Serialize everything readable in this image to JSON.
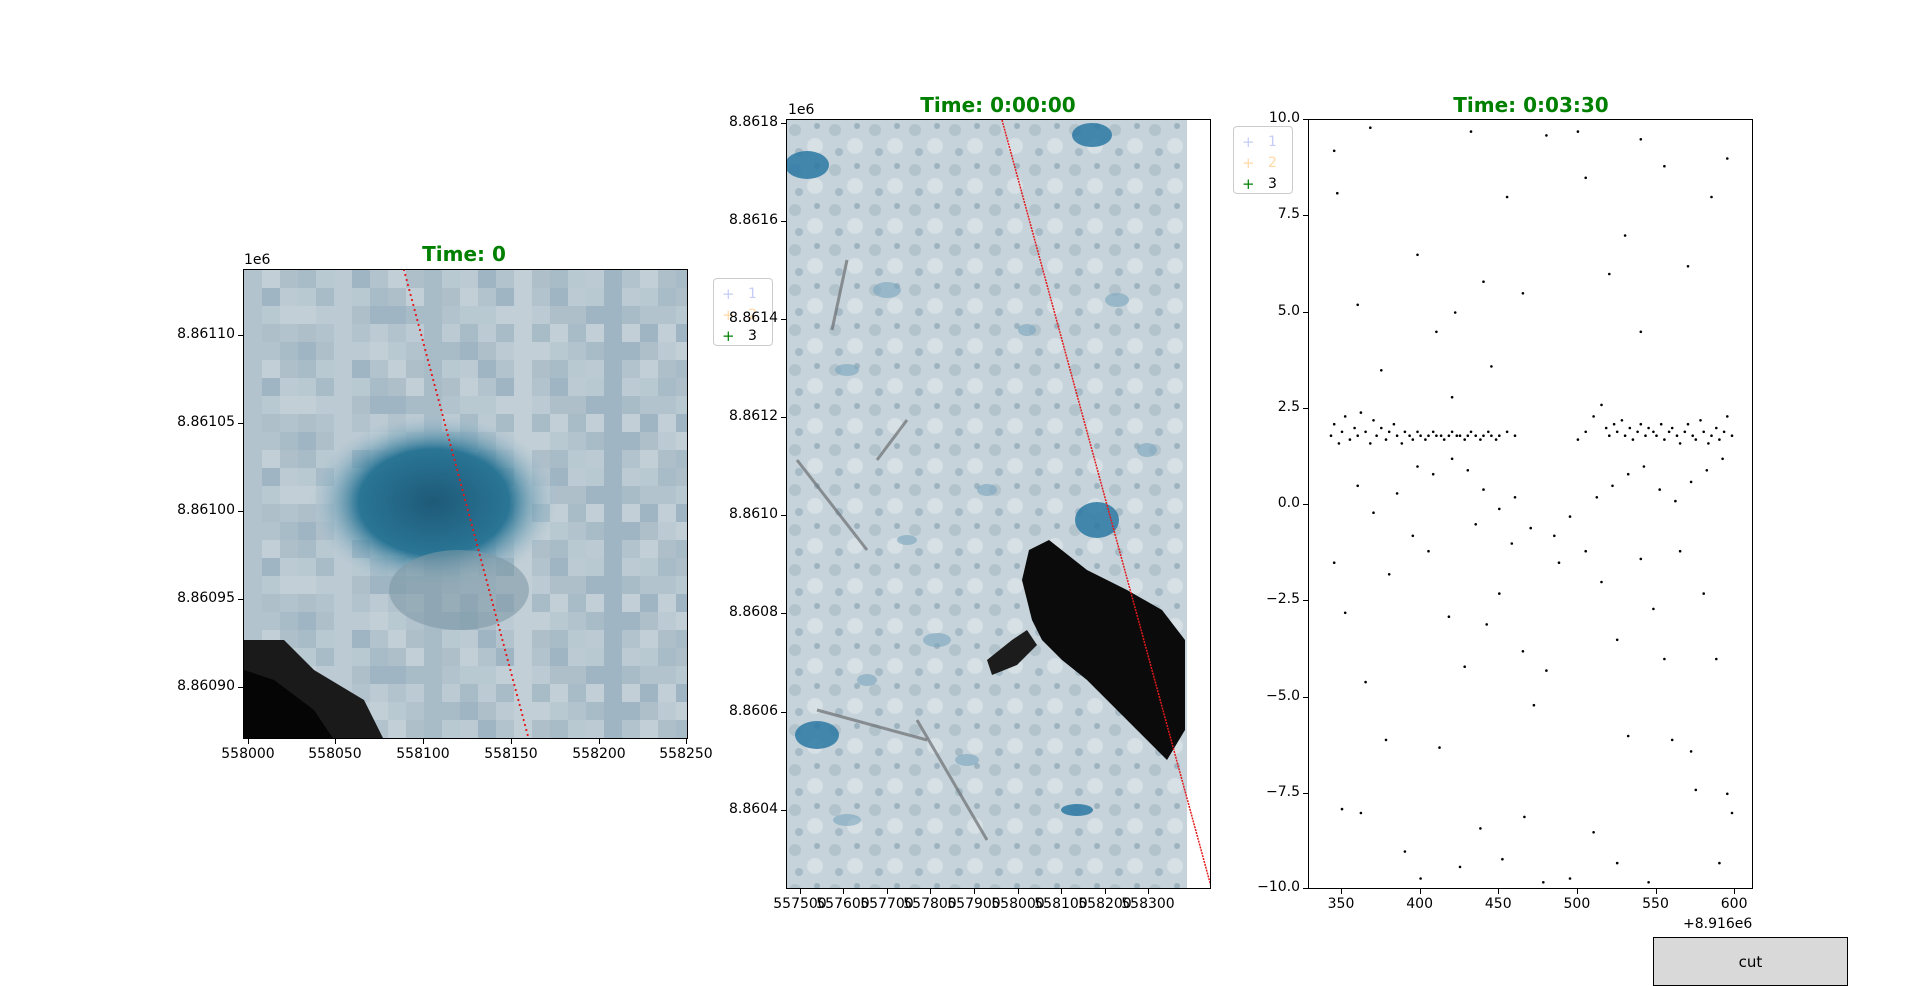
{
  "panels": {
    "left": {
      "title": "Time: 0",
      "x_ticks": [
        "558000",
        "558050",
        "558100",
        "558150",
        "558200",
        "558250"
      ],
      "y_ticks": [
        "8.86110",
        "8.86105",
        "8.86100",
        "8.86095",
        "8.86090"
      ],
      "y_offset": "1e6",
      "legend": [
        {
          "marker": "+",
          "label": "1",
          "color": "#aab4ff"
        },
        {
          "marker": "+",
          "label": "2",
          "color": "#ffbb66"
        },
        {
          "marker": "+",
          "label": "3",
          "color": "#008000"
        }
      ]
    },
    "middle": {
      "title": "Time: 0:00:00",
      "x_ticks": [
        "557500",
        "557600",
        "557700",
        "557800",
        "557900",
        "558000",
        "558100",
        "558200",
        "558300"
      ],
      "y_ticks": [
        "8.8618",
        "8.8616",
        "8.8614",
        "8.8612",
        "8.8610",
        "8.8608",
        "8.8606",
        "8.8604"
      ],
      "y_offset": "1e6",
      "legend": [
        {
          "marker": "+",
          "label": "1",
          "color": "#aab4ff"
        },
        {
          "marker": "+",
          "label": "2",
          "color": "#ffbb66"
        },
        {
          "marker": "+",
          "label": "3",
          "color": "#008000"
        }
      ]
    },
    "right": {
      "title": "Time: 0:03:30",
      "x_ticks": [
        "350",
        "400",
        "450",
        "500",
        "550",
        "600"
      ],
      "x_offset": "+8.916e6",
      "y_ticks": [
        "10.0",
        "7.5",
        "5.0",
        "2.5",
        "0.0",
        "−2.5",
        "−5.0",
        "−7.5",
        "−10.0"
      ]
    }
  },
  "chart_data": {
    "type": "scatter",
    "title": "Time: 0:03:30",
    "xlabel": "",
    "ylabel": "",
    "xlim": [
      329,
      612
    ],
    "ylim": [
      -10,
      10
    ],
    "x_offset": 8916000,
    "series": [
      {
        "description_points": "photon heights along track",
        "points": [
          [
            343,
            1.8
          ],
          [
            345,
            2.1
          ],
          [
            348,
            1.6
          ],
          [
            350,
            1.9
          ],
          [
            352,
            2.3
          ],
          [
            355,
            1.7
          ],
          [
            358,
            2.0
          ],
          [
            360,
            1.8
          ],
          [
            362,
            2.4
          ],
          [
            365,
            1.9
          ],
          [
            368,
            1.6
          ],
          [
            370,
            2.2
          ],
          [
            372,
            1.8
          ],
          [
            375,
            2.0
          ],
          [
            378,
            1.7
          ],
          [
            380,
            1.9
          ],
          [
            383,
            2.1
          ],
          [
            385,
            1.8
          ],
          [
            388,
            1.6
          ],
          [
            390,
            1.9
          ],
          [
            393,
            1.8
          ],
          [
            395,
            1.7
          ],
          [
            398,
            1.9
          ],
          [
            400,
            1.8
          ],
          [
            403,
            1.7
          ],
          [
            405,
            1.8
          ],
          [
            408,
            1.9
          ],
          [
            410,
            1.8
          ],
          [
            413,
            1.8
          ],
          [
            415,
            1.7
          ],
          [
            418,
            1.8
          ],
          [
            420,
            1.9
          ],
          [
            423,
            1.8
          ],
          [
            425,
            1.8
          ],
          [
            428,
            1.7
          ],
          [
            430,
            1.8
          ],
          [
            432,
            1.9
          ],
          [
            435,
            1.8
          ],
          [
            438,
            1.7
          ],
          [
            440,
            1.8
          ],
          [
            443,
            1.9
          ],
          [
            445,
            1.8
          ],
          [
            448,
            1.7
          ],
          [
            450,
            1.8
          ],
          [
            455,
            1.9
          ],
          [
            460,
            1.8
          ],
          [
            500,
            1.7
          ],
          [
            505,
            1.9
          ],
          [
            510,
            2.3
          ],
          [
            515,
            2.6
          ],
          [
            518,
            2.0
          ],
          [
            520,
            1.8
          ],
          [
            523,
            2.1
          ],
          [
            525,
            1.9
          ],
          [
            528,
            2.2
          ],
          [
            530,
            1.8
          ],
          [
            533,
            2.0
          ],
          [
            535,
            1.7
          ],
          [
            538,
            1.9
          ],
          [
            540,
            2.1
          ],
          [
            543,
            1.8
          ],
          [
            545,
            2.0
          ],
          [
            548,
            1.9
          ],
          [
            550,
            1.8
          ],
          [
            553,
            2.1
          ],
          [
            555,
            1.7
          ],
          [
            558,
            1.9
          ],
          [
            560,
            2.0
          ],
          [
            563,
            1.8
          ],
          [
            565,
            1.6
          ],
          [
            568,
            1.9
          ],
          [
            570,
            2.1
          ],
          [
            573,
            1.8
          ],
          [
            575,
            1.7
          ],
          [
            578,
            2.2
          ],
          [
            580,
            1.9
          ],
          [
            583,
            1.6
          ],
          [
            585,
            1.8
          ],
          [
            588,
            2.0
          ],
          [
            590,
            1.7
          ],
          [
            593,
            1.9
          ],
          [
            595,
            2.3
          ],
          [
            598,
            1.8
          ],
          [
            345,
            9.2
          ],
          [
            347,
            8.1
          ],
          [
            368,
            9.8
          ],
          [
            398,
            6.5
          ],
          [
            410,
            4.5
          ],
          [
            422,
            5.0
          ],
          [
            432,
            9.7
          ],
          [
            440,
            5.8
          ],
          [
            455,
            8.0
          ],
          [
            465,
            5.5
          ],
          [
            480,
            9.6
          ],
          [
            500,
            9.7
          ],
          [
            505,
            8.5
          ],
          [
            520,
            6.0
          ],
          [
            530,
            7.0
          ],
          [
            540,
            9.5
          ],
          [
            555,
            8.8
          ],
          [
            570,
            6.2
          ],
          [
            585,
            8.0
          ],
          [
            595,
            9.0
          ],
          [
            360,
            5.2
          ],
          [
            375,
            3.5
          ],
          [
            420,
            2.8
          ],
          [
            445,
            3.6
          ],
          [
            540,
            4.5
          ],
          [
            345,
            -1.5
          ],
          [
            352,
            -2.8
          ],
          [
            365,
            -4.6
          ],
          [
            380,
            -1.8
          ],
          [
            395,
            -0.8
          ],
          [
            405,
            -1.2
          ],
          [
            418,
            -2.9
          ],
          [
            428,
            -4.2
          ],
          [
            435,
            -0.5
          ],
          [
            442,
            -3.1
          ],
          [
            450,
            -2.3
          ],
          [
            458,
            -1.0
          ],
          [
            465,
            -3.8
          ],
          [
            472,
            -5.2
          ],
          [
            480,
            -4.3
          ],
          [
            488,
            -1.5
          ],
          [
            495,
            -0.3
          ],
          [
            505,
            -1.2
          ],
          [
            515,
            -2.0
          ],
          [
            525,
            -3.5
          ],
          [
            532,
            -6.0
          ],
          [
            540,
            -1.4
          ],
          [
            548,
            -2.7
          ],
          [
            555,
            -4.0
          ],
          [
            565,
            -1.2
          ],
          [
            572,
            -6.4
          ],
          [
            580,
            -2.3
          ],
          [
            588,
            -4.0
          ],
          [
            595,
            -7.5
          ],
          [
            350,
            -7.9
          ],
          [
            362,
            -8.0
          ],
          [
            378,
            -6.1
          ],
          [
            390,
            -9.0
          ],
          [
            400,
            -9.7
          ],
          [
            412,
            -6.3
          ],
          [
            425,
            -9.4
          ],
          [
            438,
            -8.4
          ],
          [
            452,
            -9.2
          ],
          [
            466,
            -8.1
          ],
          [
            478,
            -9.8
          ],
          [
            495,
            -9.7
          ],
          [
            510,
            -8.5
          ],
          [
            525,
            -9.3
          ],
          [
            545,
            -9.8
          ],
          [
            560,
            -6.1
          ],
          [
            575,
            -7.4
          ],
          [
            590,
            -9.3
          ],
          [
            598,
            -8.0
          ],
          [
            360,
            0.5
          ],
          [
            370,
            -0.2
          ],
          [
            385,
            0.3
          ],
          [
            398,
            1.0
          ],
          [
            408,
            0.8
          ],
          [
            420,
            1.2
          ],
          [
            430,
            0.9
          ],
          [
            440,
            0.4
          ],
          [
            450,
            -0.1
          ],
          [
            460,
            0.2
          ],
          [
            470,
            -0.6
          ],
          [
            485,
            -0.8
          ],
          [
            512,
            0.2
          ],
          [
            522,
            0.5
          ],
          [
            532,
            0.8
          ],
          [
            542,
            1.0
          ],
          [
            552,
            0.4
          ],
          [
            562,
            0.1
          ],
          [
            572,
            0.6
          ],
          [
            582,
            0.9
          ],
          [
            592,
            1.2
          ]
        ]
      }
    ]
  },
  "controls": {
    "cut_label": "cut"
  }
}
